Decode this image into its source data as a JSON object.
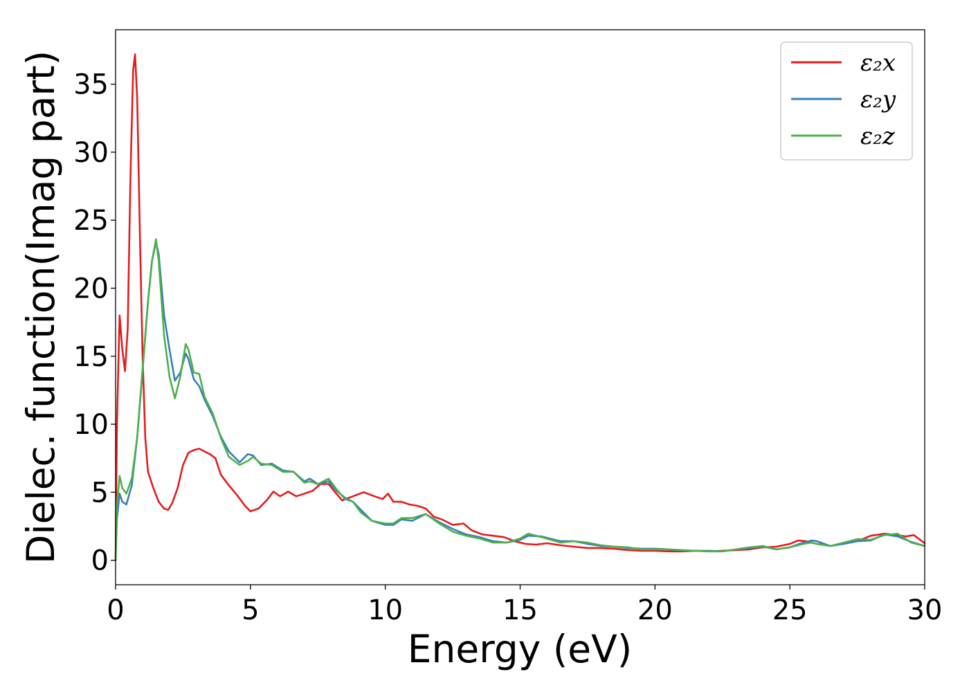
{
  "chart_data": {
    "type": "line",
    "title": "",
    "xlabel": "Energy (eV)",
    "ylabel": "Dielec. function(Imag part)",
    "xlim": [
      0,
      30
    ],
    "ylim": [
      -1.8,
      39
    ],
    "xticks": [
      "0",
      "5",
      "10",
      "15",
      "20",
      "25",
      "30"
    ],
    "yticks": [
      "0",
      "5",
      "10",
      "15",
      "20",
      "25",
      "30",
      "35"
    ],
    "grid": false,
    "legend_position": "top-right",
    "series": [
      {
        "name": "ε₂x",
        "color": "#e41a1c",
        "points": [
          [
            0,
            0
          ],
          [
            0.05,
            10
          ],
          [
            0.15,
            18
          ],
          [
            0.25,
            15.5
          ],
          [
            0.35,
            13.9
          ],
          [
            0.45,
            17
          ],
          [
            0.55,
            28
          ],
          [
            0.65,
            36
          ],
          [
            0.72,
            37.2
          ],
          [
            0.8,
            34
          ],
          [
            0.9,
            24
          ],
          [
            1.0,
            15
          ],
          [
            1.1,
            9
          ],
          [
            1.2,
            6.5
          ],
          [
            1.4,
            5.3
          ],
          [
            1.6,
            4.3
          ],
          [
            1.8,
            3.8
          ],
          [
            1.95,
            3.7
          ],
          [
            2.1,
            4.2
          ],
          [
            2.3,
            5.3
          ],
          [
            2.5,
            7
          ],
          [
            2.7,
            7.9
          ],
          [
            2.9,
            8.1
          ],
          [
            3.1,
            8.2
          ],
          [
            3.3,
            8.0
          ],
          [
            3.5,
            7.8
          ],
          [
            3.7,
            7.5
          ],
          [
            3.9,
            6.3
          ],
          [
            4.2,
            5.5
          ],
          [
            4.5,
            4.8
          ],
          [
            4.8,
            4.0
          ],
          [
            5.0,
            3.6
          ],
          [
            5.3,
            3.8
          ],
          [
            5.6,
            4.4
          ],
          [
            5.85,
            5.05
          ],
          [
            6.1,
            4.7
          ],
          [
            6.4,
            5.05
          ],
          [
            6.7,
            4.7
          ],
          [
            7.0,
            4.9
          ],
          [
            7.3,
            5.1
          ],
          [
            7.6,
            5.6
          ],
          [
            7.9,
            5.6
          ],
          [
            8.1,
            5.1
          ],
          [
            8.4,
            4.4
          ],
          [
            8.8,
            4.7
          ],
          [
            9.2,
            5.0
          ],
          [
            9.6,
            4.7
          ],
          [
            9.9,
            4.5
          ],
          [
            10.1,
            4.9
          ],
          [
            10.3,
            4.3
          ],
          [
            10.6,
            4.3
          ],
          [
            10.9,
            4.1
          ],
          [
            11.2,
            4.0
          ],
          [
            11.5,
            3.8
          ],
          [
            11.8,
            3.2
          ],
          [
            12.1,
            3.0
          ],
          [
            12.5,
            2.6
          ],
          [
            12.9,
            2.7
          ],
          [
            13.2,
            2.2
          ],
          [
            13.6,
            1.9
          ],
          [
            14.0,
            1.8
          ],
          [
            14.4,
            1.7
          ],
          [
            14.8,
            1.4
          ],
          [
            15.2,
            1.2
          ],
          [
            15.6,
            1.15
          ],
          [
            16.0,
            1.25
          ],
          [
            16.5,
            1.1
          ],
          [
            17.0,
            1.0
          ],
          [
            17.5,
            0.9
          ],
          [
            18.0,
            0.9
          ],
          [
            18.5,
            0.85
          ],
          [
            19.0,
            0.75
          ],
          [
            19.5,
            0.7
          ],
          [
            20.0,
            0.7
          ],
          [
            20.5,
            0.65
          ],
          [
            21.0,
            0.65
          ],
          [
            21.5,
            0.7
          ],
          [
            22.0,
            0.65
          ],
          [
            22.5,
            0.7
          ],
          [
            23.0,
            0.75
          ],
          [
            23.5,
            0.8
          ],
          [
            24.0,
            0.95
          ],
          [
            24.5,
            1.0
          ],
          [
            25.0,
            1.2
          ],
          [
            25.3,
            1.45
          ],
          [
            25.6,
            1.4
          ],
          [
            26.0,
            1.2
          ],
          [
            26.5,
            1.05
          ],
          [
            27.0,
            1.25
          ],
          [
            27.5,
            1.4
          ],
          [
            28.0,
            1.8
          ],
          [
            28.5,
            1.95
          ],
          [
            29.0,
            1.85
          ],
          [
            29.3,
            1.75
          ],
          [
            29.6,
            1.85
          ],
          [
            30.0,
            1.25
          ]
        ]
      },
      {
        "name": "ε₂y",
        "color": "#377eb8",
        "points": [
          [
            0,
            0
          ],
          [
            0.05,
            3
          ],
          [
            0.15,
            4.9
          ],
          [
            0.25,
            4.3
          ],
          [
            0.4,
            4.1
          ],
          [
            0.6,
            5.5
          ],
          [
            0.8,
            9
          ],
          [
            1.0,
            14
          ],
          [
            1.2,
            19
          ],
          [
            1.35,
            22
          ],
          [
            1.5,
            23.4
          ],
          [
            1.6,
            22.5
          ],
          [
            1.8,
            18
          ],
          [
            2.0,
            15.5
          ],
          [
            2.2,
            13.2
          ],
          [
            2.4,
            13.8
          ],
          [
            2.6,
            15.2
          ],
          [
            2.7,
            14.8
          ],
          [
            2.9,
            13.3
          ],
          [
            3.1,
            12.8
          ],
          [
            3.3,
            11.8
          ],
          [
            3.6,
            10.6
          ],
          [
            3.9,
            9.1
          ],
          [
            4.2,
            8.0
          ],
          [
            4.6,
            7.2
          ],
          [
            4.9,
            7.8
          ],
          [
            5.1,
            7.7
          ],
          [
            5.4,
            7.0
          ],
          [
            5.8,
            7.1
          ],
          [
            6.2,
            6.6
          ],
          [
            6.6,
            6.5
          ],
          [
            7.0,
            5.8
          ],
          [
            7.2,
            6.0
          ],
          [
            7.5,
            5.6
          ],
          [
            7.9,
            5.8
          ],
          [
            8.2,
            5.1
          ],
          [
            8.5,
            4.6
          ],
          [
            8.8,
            4.3
          ],
          [
            9.1,
            3.7
          ],
          [
            9.5,
            2.9
          ],
          [
            10.0,
            2.6
          ],
          [
            10.3,
            2.6
          ],
          [
            10.6,
            3.0
          ],
          [
            11.0,
            2.9
          ],
          [
            11.5,
            3.4
          ],
          [
            12.0,
            2.8
          ],
          [
            12.5,
            2.3
          ],
          [
            13.0,
            1.9
          ],
          [
            13.5,
            1.7
          ],
          [
            14.0,
            1.4
          ],
          [
            14.5,
            1.3
          ],
          [
            15.0,
            1.5
          ],
          [
            15.3,
            1.8
          ],
          [
            15.8,
            1.75
          ],
          [
            16.5,
            1.4
          ],
          [
            17.0,
            1.4
          ],
          [
            17.5,
            1.2
          ],
          [
            18.0,
            1.05
          ],
          [
            18.5,
            1.0
          ],
          [
            19.0,
            0.9
          ],
          [
            19.5,
            0.85
          ],
          [
            20.0,
            0.85
          ],
          [
            20.5,
            0.8
          ],
          [
            21.0,
            0.72
          ],
          [
            21.5,
            0.7
          ],
          [
            22.0,
            0.7
          ],
          [
            22.5,
            0.65
          ],
          [
            23.0,
            0.8
          ],
          [
            23.5,
            0.9
          ],
          [
            24.0,
            1.0
          ],
          [
            24.5,
            0.8
          ],
          [
            25.0,
            0.95
          ],
          [
            25.5,
            1.3
          ],
          [
            25.8,
            1.45
          ],
          [
            26.0,
            1.4
          ],
          [
            26.5,
            1.05
          ],
          [
            27.0,
            1.2
          ],
          [
            27.5,
            1.4
          ],
          [
            28.0,
            1.45
          ],
          [
            28.5,
            1.9
          ],
          [
            29.0,
            1.75
          ],
          [
            29.5,
            1.35
          ],
          [
            30.0,
            1.05
          ]
        ]
      },
      {
        "name": "ε₂z",
        "color": "#4daf4a",
        "points": [
          [
            0,
            0
          ],
          [
            0.05,
            4
          ],
          [
            0.15,
            6.2
          ],
          [
            0.25,
            5.3
          ],
          [
            0.4,
            4.9
          ],
          [
            0.6,
            6
          ],
          [
            0.8,
            9
          ],
          [
            1.0,
            14
          ],
          [
            1.2,
            19
          ],
          [
            1.35,
            22
          ],
          [
            1.5,
            23.6
          ],
          [
            1.6,
            22
          ],
          [
            1.8,
            16.5
          ],
          [
            2.0,
            13.5
          ],
          [
            2.2,
            11.9
          ],
          [
            2.4,
            13.5
          ],
          [
            2.6,
            15.9
          ],
          [
            2.7,
            15.5
          ],
          [
            2.9,
            13.8
          ],
          [
            3.1,
            13.7
          ],
          [
            3.3,
            12.0
          ],
          [
            3.6,
            10.8
          ],
          [
            3.9,
            9.0
          ],
          [
            4.2,
            7.6
          ],
          [
            4.6,
            7.0
          ],
          [
            4.9,
            7.3
          ],
          [
            5.1,
            7.6
          ],
          [
            5.4,
            7.1
          ],
          [
            5.8,
            7.0
          ],
          [
            6.2,
            6.5
          ],
          [
            6.6,
            6.5
          ],
          [
            7.0,
            5.7
          ],
          [
            7.2,
            5.8
          ],
          [
            7.5,
            5.6
          ],
          [
            7.9,
            6.0
          ],
          [
            8.2,
            5.2
          ],
          [
            8.5,
            4.5
          ],
          [
            8.8,
            4.3
          ],
          [
            9.1,
            3.5
          ],
          [
            9.5,
            2.9
          ],
          [
            10.0,
            2.7
          ],
          [
            10.3,
            2.7
          ],
          [
            10.6,
            3.1
          ],
          [
            11.0,
            3.1
          ],
          [
            11.5,
            3.4
          ],
          [
            12.0,
            2.7
          ],
          [
            12.5,
            2.1
          ],
          [
            13.0,
            1.8
          ],
          [
            13.5,
            1.6
          ],
          [
            14.0,
            1.3
          ],
          [
            14.5,
            1.3
          ],
          [
            15.0,
            1.6
          ],
          [
            15.3,
            1.95
          ],
          [
            15.8,
            1.7
          ],
          [
            16.5,
            1.3
          ],
          [
            17.0,
            1.4
          ],
          [
            17.5,
            1.3
          ],
          [
            18.0,
            1.1
          ],
          [
            18.5,
            1.0
          ],
          [
            19.0,
            0.95
          ],
          [
            19.5,
            0.8
          ],
          [
            20.0,
            0.8
          ],
          [
            20.5,
            0.8
          ],
          [
            21.0,
            0.75
          ],
          [
            21.5,
            0.7
          ],
          [
            22.0,
            0.65
          ],
          [
            22.5,
            0.65
          ],
          [
            23.0,
            0.8
          ],
          [
            23.5,
            0.95
          ],
          [
            24.0,
            1.05
          ],
          [
            24.5,
            0.8
          ],
          [
            25.0,
            0.95
          ],
          [
            25.5,
            1.2
          ],
          [
            25.8,
            1.3
          ],
          [
            26.0,
            1.2
          ],
          [
            26.5,
            1.05
          ],
          [
            27.0,
            1.3
          ],
          [
            27.5,
            1.55
          ],
          [
            28.0,
            1.5
          ],
          [
            28.5,
            1.85
          ],
          [
            29.0,
            1.95
          ],
          [
            29.5,
            1.3
          ],
          [
            30.0,
            1.05
          ]
        ]
      }
    ]
  }
}
